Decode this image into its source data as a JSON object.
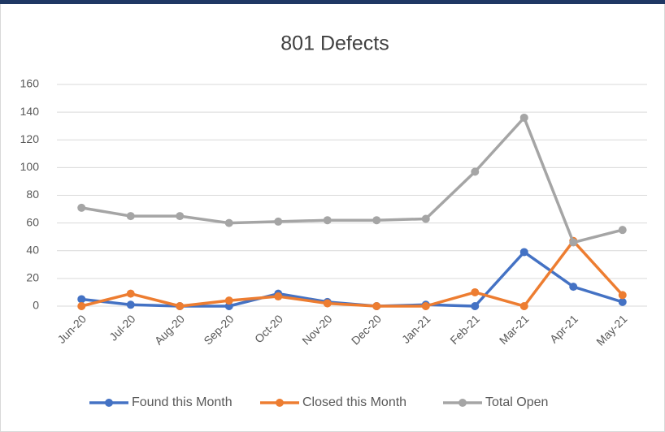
{
  "chart_data": {
    "type": "line",
    "title": "801 Defects",
    "categories": [
      "Jun-20",
      "Jul-20",
      "Aug-20",
      "Sep-20",
      "Oct-20",
      "Nov-20",
      "Dec-20",
      "Jan-21",
      "Feb-21",
      "Mar-21",
      "Apr-21",
      "May-21"
    ],
    "series": [
      {
        "name": "Found this Month",
        "color": "#4472c4",
        "values": [
          5,
          1,
          0,
          0,
          9,
          3,
          0,
          1,
          0,
          39,
          14,
          3
        ]
      },
      {
        "name": "Closed this Month",
        "color": "#ed7d31",
        "values": [
          0,
          9,
          0,
          4,
          7,
          2,
          0,
          0,
          10,
          0,
          47,
          8
        ]
      },
      {
        "name": "Total Open",
        "color": "#a5a5a5",
        "values": [
          71,
          65,
          65,
          60,
          61,
          62,
          62,
          63,
          97,
          136,
          46,
          55
        ]
      }
    ],
    "ylim": [
      0,
      160
    ],
    "yticks": [
      0,
      20,
      40,
      60,
      80,
      100,
      120,
      140,
      160
    ],
    "grid": true,
    "legend": "bottom"
  }
}
